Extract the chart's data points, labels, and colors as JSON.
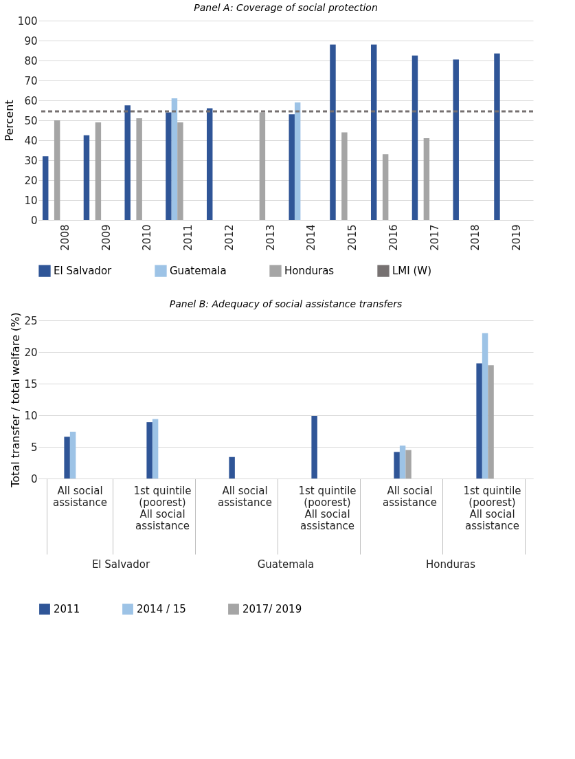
{
  "chart_data": [
    {
      "type": "bar",
      "title": "Panel A: Coverage of social protection",
      "ylabel": "Percent",
      "categories": [
        "2008",
        "2009",
        "2010",
        "2011",
        "2012",
        "2013",
        "2014",
        "2015",
        "2016",
        "2017",
        "2018",
        "2019"
      ],
      "series": [
        {
          "name": "El Salvador",
          "color": "#2f5597",
          "values": [
            32,
            42.5,
            57.5,
            54,
            56,
            null,
            53,
            88,
            88,
            82.5,
            80.5,
            83.5
          ]
        },
        {
          "name": "Guatemala",
          "color": "#9dc3e6",
          "values": [
            null,
            null,
            null,
            61,
            null,
            null,
            59,
            null,
            null,
            null,
            null,
            null
          ]
        },
        {
          "name": "Honduras",
          "color": "#a5a5a5",
          "values": [
            50,
            49,
            51,
            49,
            null,
            54,
            null,
            44,
            33,
            41,
            null,
            null
          ]
        }
      ],
      "ref_lines": [
        {
          "axis": "y",
          "value": 54.5,
          "label": "LMI (W)",
          "color": "#767171",
          "line_style": "dashed"
        }
      ],
      "ylim": [
        0,
        100
      ],
      "yticks": [
        0,
        10,
        20,
        30,
        40,
        50,
        60,
        70,
        80,
        90,
        100
      ],
      "grid": "y",
      "legend": "bottom"
    },
    {
      "type": "bar",
      "title": "Panel B: Adequacy of social assistance transfers",
      "ylabel": "Total transfer / total welfare (%)",
      "categories": [
        "All social assistance",
        "1st quintile (poorest) All social assistance",
        "All social assistance",
        "1st quintile (poorest) All social assistance",
        "All social assistance",
        "1st quintile (poorest) All social assistance"
      ],
      "series": [
        {
          "name": "2011",
          "color": "#2f5597",
          "values": [
            6.6,
            8.9,
            3.4,
            9.9,
            4.2,
            18.2
          ]
        },
        {
          "name": "2014 / 15",
          "color": "#9dc3e6",
          "values": [
            7.4,
            9.4,
            null,
            null,
            5.2,
            23
          ]
        },
        {
          "name": "2017/ 2019",
          "color": "#a5a5a5",
          "values": [
            null,
            null,
            null,
            null,
            4.5,
            17.9
          ]
        }
      ],
      "annotations": [
        "El Salvador",
        "Guatemala",
        "Honduras"
      ],
      "ylim": [
        0,
        25
      ],
      "yticks": [
        0,
        5,
        10,
        15,
        20,
        25
      ],
      "grid": "y",
      "legend": "bottom"
    }
  ]
}
